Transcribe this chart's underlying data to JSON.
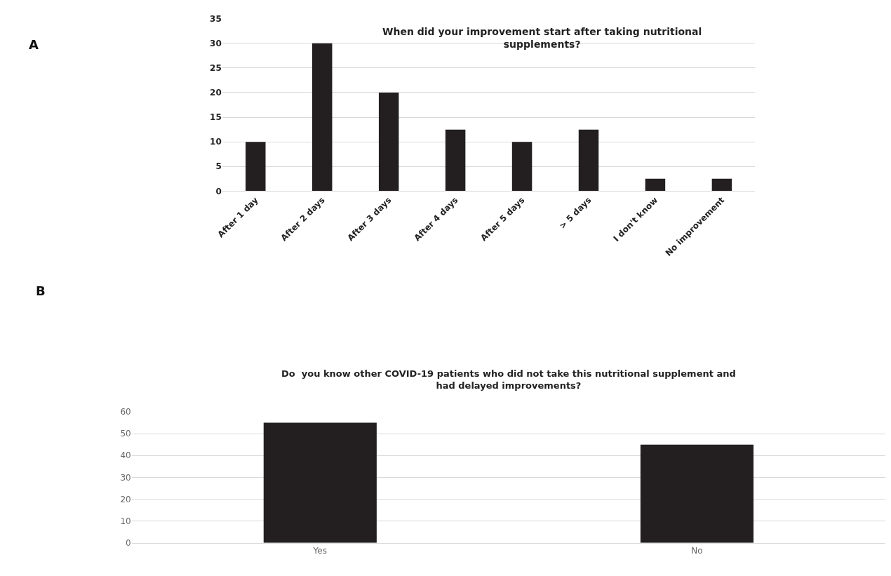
{
  "chart_data": [
    {
      "type": "bar",
      "title": "When did your improvement start after taking nutritional supplements?",
      "annotations": [
        "A"
      ],
      "categories": [
        "After 1 day",
        "After 2 days",
        "After 3 days",
        "After 4 days",
        "After 5 days",
        "> 5 days",
        "I don't know",
        "No improvement"
      ],
      "values": [
        10,
        30,
        20,
        12.5,
        10,
        12.5,
        2.5,
        2.5
      ],
      "color": "#231f20",
      "ylim": [
        0,
        35
      ],
      "yticks": [
        0,
        5,
        10,
        15,
        20,
        25,
        30,
        35
      ],
      "grid": "y"
    },
    {
      "type": "bar",
      "title": "Do  you know other COVID-19 patients who did not take this nutritional supplement and had delayed improvements?",
      "annotations": [
        "B"
      ],
      "categories": [
        "Yes",
        "No"
      ],
      "values": [
        55,
        45
      ],
      "color": "#231f20",
      "ylim": [
        0,
        60
      ],
      "yticks": [
        0,
        10,
        20,
        30,
        40,
        50,
        60
      ],
      "grid": "y"
    }
  ]
}
